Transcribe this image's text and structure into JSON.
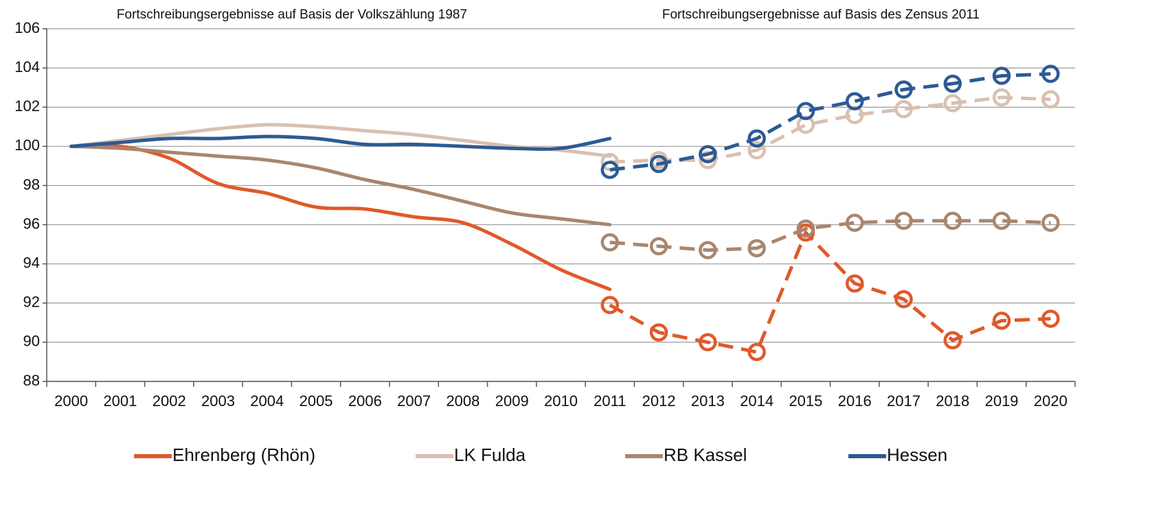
{
  "chart_data": {
    "type": "line",
    "annotations": [
      "Fortschreibungsergebnisse auf Basis der Volkszählung 1987",
      "Fortschreibungsergebnisse auf Basis des Zensus 2011"
    ],
    "categories": [
      "2000",
      "2001",
      "2002",
      "2003",
      "2004",
      "2005",
      "2006",
      "2007",
      "2008",
      "2009",
      "2010",
      "2011",
      "2012",
      "2013",
      "2014",
      "2015",
      "2016",
      "2017",
      "2018",
      "2019",
      "2020"
    ],
    "series": [
      {
        "name": "Ehrenberg (Rhön)",
        "color": "#e0592a",
        "values": [
          100,
          100.0,
          99.4,
          98.1,
          97.6,
          96.9,
          96.8,
          96.4,
          96.1,
          95.0,
          93.7,
          92.7,
          null,
          null,
          null,
          null,
          null,
          null,
          null,
          null,
          null
        ],
        "values_2011": [
          null,
          null,
          null,
          null,
          null,
          null,
          null,
          null,
          null,
          null,
          null,
          91.9,
          90.5,
          90.0,
          89.5,
          95.6,
          93.0,
          92.2,
          90.1,
          91.1,
          91.2
        ]
      },
      {
        "name": "LK Fulda",
        "color": "#d8c0b1",
        "values": [
          100,
          100.3,
          100.6,
          100.9,
          101.1,
          101.0,
          100.8,
          100.6,
          100.3,
          100.0,
          99.8,
          99.5,
          null,
          null,
          null,
          null,
          null,
          null,
          null,
          null,
          null
        ],
        "values_2011": [
          null,
          null,
          null,
          null,
          null,
          null,
          null,
          null,
          null,
          null,
          null,
          99.2,
          99.3,
          99.3,
          99.8,
          101.1,
          101.6,
          101.9,
          102.2,
          102.5,
          102.4
        ]
      },
      {
        "name": "RB Kassel",
        "color": "#a8866f",
        "values": [
          100,
          99.9,
          99.7,
          99.5,
          99.3,
          98.9,
          98.3,
          97.8,
          97.2,
          96.6,
          96.3,
          96.0,
          null,
          null,
          null,
          null,
          null,
          null,
          null,
          null,
          null
        ],
        "values_2011": [
          null,
          null,
          null,
          null,
          null,
          null,
          null,
          null,
          null,
          null,
          null,
          95.1,
          94.9,
          94.7,
          94.8,
          95.8,
          96.1,
          96.2,
          96.2,
          96.2,
          96.1
        ]
      },
      {
        "name": "Hessen",
        "color": "#2c5a94",
        "values": [
          100,
          100.2,
          100.4,
          100.4,
          100.5,
          100.4,
          100.1,
          100.1,
          100.0,
          99.9,
          99.9,
          100.4,
          null,
          null,
          null,
          null,
          null,
          null,
          null,
          null,
          null
        ],
        "values_2011": [
          null,
          null,
          null,
          null,
          null,
          null,
          null,
          null,
          null,
          null,
          null,
          98.8,
          99.1,
          99.6,
          100.4,
          101.8,
          102.3,
          102.9,
          103.2,
          103.6,
          103.7
        ]
      }
    ],
    "ylim": [
      88,
      106
    ],
    "yticks": [
      88,
      90,
      92,
      94,
      96,
      98,
      100,
      102,
      104,
      106
    ],
    "grid": true,
    "legend": "bottom"
  }
}
